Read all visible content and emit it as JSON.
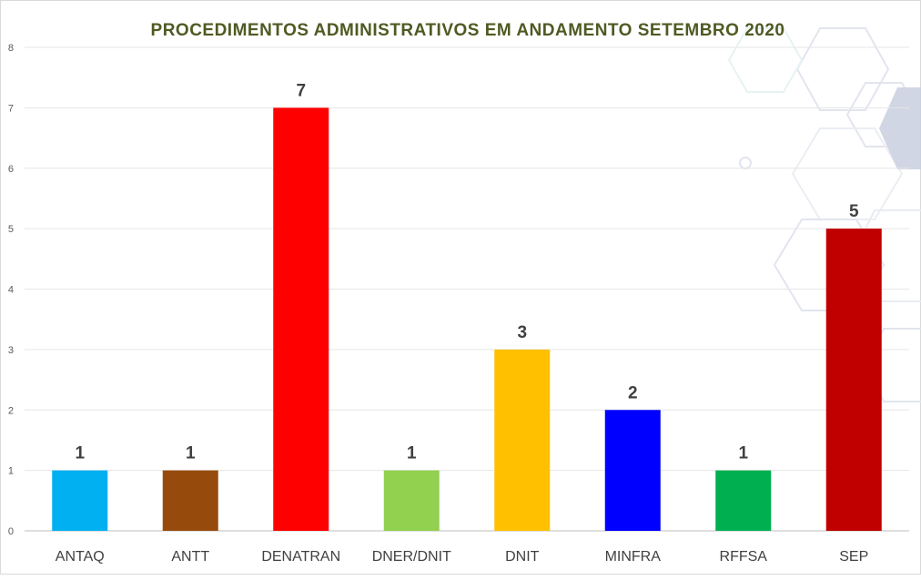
{
  "chart_data": {
    "type": "bar",
    "title": "PROCEDIMENTOS ADMINISTRATIVOS EM ANDAMENTO SETEMBRO 2020",
    "categories": [
      "ANTAQ",
      "ANTT",
      "DENATRAN",
      "DNER/DNIT",
      "DNIT",
      "MINFRA",
      "RFFSA",
      "SEP"
    ],
    "values": [
      1,
      1,
      7,
      1,
      3,
      2,
      1,
      5
    ],
    "colors": [
      "#00B0F0",
      "#964B0C",
      "#FF0000",
      "#92D050",
      "#FFC000",
      "#0000FF",
      "#00B050",
      "#C00000"
    ],
    "data_labels": [
      "1",
      "1",
      "7",
      "1",
      "3",
      "2",
      "1",
      "5"
    ],
    "yticks": [
      "0",
      "1",
      "2",
      "3",
      "4",
      "5",
      "6",
      "7",
      "8"
    ],
    "ylim": [
      0,
      8
    ],
    "xlabel": "",
    "ylabel": "",
    "grid": true,
    "legend": "none",
    "title_color": "#4F5A23",
    "label_color": "#404040"
  }
}
